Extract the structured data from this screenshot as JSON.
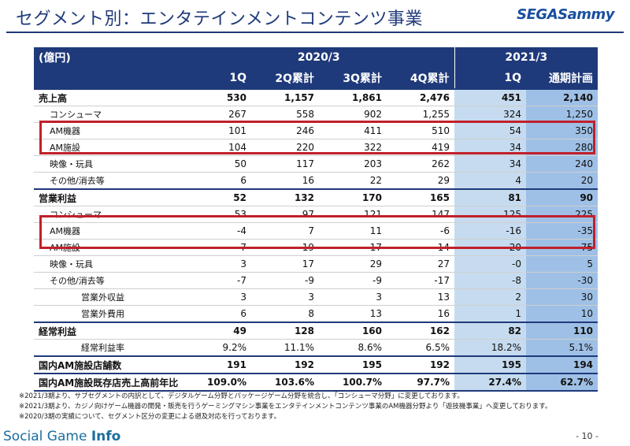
{
  "title": "セグメント別：エンタテインメントコンテンツ事業",
  "logo": "SEGASammy",
  "table": {
    "unit": "(億円)",
    "fy1": "2020/3",
    "fy2": "2021/3",
    "cols": [
      "1Q",
      "2Q累計",
      "3Q累計",
      "4Q累計",
      "1Q",
      "通期計画"
    ],
    "rows": [
      {
        "label": "売上高",
        "values": [
          "530",
          "1,157",
          "1,861",
          "2,476",
          "451",
          "2,140"
        ]
      },
      {
        "label": "コンシューマ",
        "values": [
          "267",
          "558",
          "902",
          "1,255",
          "324",
          "1,250"
        ]
      },
      {
        "label": "AM機器",
        "values": [
          "101",
          "246",
          "411",
          "510",
          "54",
          "350"
        ]
      },
      {
        "label": "AM施設",
        "values": [
          "104",
          "220",
          "322",
          "419",
          "34",
          "280"
        ]
      },
      {
        "label": "映像・玩具",
        "values": [
          "50",
          "117",
          "203",
          "262",
          "34",
          "240"
        ]
      },
      {
        "label": "その他/消去等",
        "values": [
          "6",
          "16",
          "22",
          "29",
          "4",
          "20"
        ]
      },
      {
        "label": "営業利益",
        "values": [
          "52",
          "132",
          "170",
          "165",
          "81",
          "90"
        ]
      },
      {
        "label": "コンシューマ",
        "values": [
          "53",
          "97",
          "121",
          "147",
          "125",
          "225"
        ]
      },
      {
        "label": "AM機器",
        "values": [
          "-4",
          "7",
          "11",
          "-6",
          "-16",
          "-35"
        ]
      },
      {
        "label": "AM施設",
        "values": [
          "7",
          "19",
          "17",
          "14",
          "-20",
          "-75"
        ]
      },
      {
        "label": "映像・玩具",
        "values": [
          "3",
          "17",
          "29",
          "27",
          "-0",
          "5"
        ]
      },
      {
        "label": "その他/消去等",
        "values": [
          "-7",
          "-9",
          "-9",
          "-17",
          "-8",
          "-30"
        ]
      },
      {
        "label": "営業外収益",
        "values": [
          "3",
          "3",
          "3",
          "13",
          "2",
          "30"
        ]
      },
      {
        "label": "営業外費用",
        "values": [
          "6",
          "8",
          "13",
          "16",
          "1",
          "10"
        ]
      },
      {
        "label": "経常利益",
        "values": [
          "49",
          "128",
          "160",
          "162",
          "82",
          "110"
        ]
      },
      {
        "label": "経常利益率",
        "values": [
          "9.2%",
          "11.1%",
          "8.6%",
          "6.5%",
          "18.2%",
          "5.1%"
        ]
      },
      {
        "label": "国内AM施設店舗数",
        "values": [
          "191",
          "192",
          "195",
          "192",
          "195",
          "194"
        ]
      },
      {
        "label": "国内AM施設既存店売上高前年比",
        "values": [
          "109.0%",
          "103.6%",
          "100.7%",
          "97.7%",
          "27.4%",
          "62.7%"
        ]
      }
    ]
  },
  "notes": [
    "※2021/3期より、サブセグメントの内訳として、デジタルゲーム分野とパッケージゲーム分野を統合し、「コンシューマ分野」に変更しております。",
    "※2021/3期より、カジノ向けゲーム機器の開発・販売を行うゲーミングマシン事業をエンタテインメントコンテンツ事業のAM機器分野より「遊技機事業」へ変更しております。",
    "※2020/3期の実績について、セグメント区分の変更による遡及対応を行っております。"
  ],
  "footer": {
    "brand_a": "Social Game ",
    "brand_b": "Info",
    "page_number": "- 10 -"
  }
}
